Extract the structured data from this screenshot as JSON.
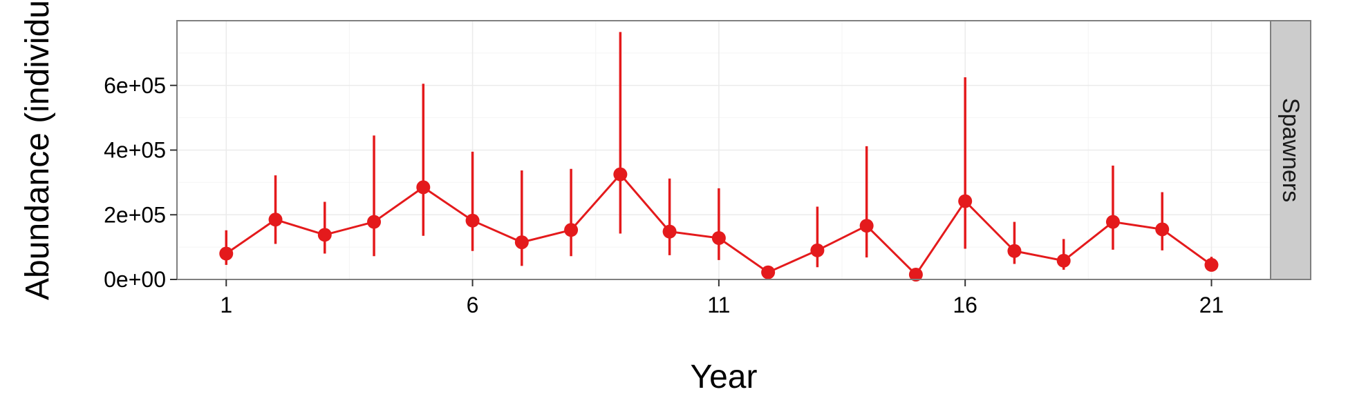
{
  "chart_data": {
    "type": "line",
    "title": "",
    "xlabel": "Year",
    "ylabel": "Abundance (individu",
    "facet_label": "Spawners",
    "xlim": [
      0,
      22.2
    ],
    "ylim": [
      0,
      800000
    ],
    "x_ticks": [
      1,
      6,
      11,
      16,
      21
    ],
    "y_ticks": [
      0,
      200000,
      400000,
      600000
    ],
    "y_tick_labels": [
      "0e+00",
      "2e+05",
      "4e+05",
      "6e+05"
    ],
    "grid": true,
    "legend": "none",
    "colors": {
      "series": "#e41a1c",
      "panel_border": "#7f7f7f",
      "grid": "#ebebeb",
      "strip_fill": "#cccccc"
    },
    "series": [
      {
        "x": [
          1,
          2,
          3,
          4,
          5,
          6,
          7,
          8,
          9,
          10,
          11,
          12,
          13,
          14,
          15,
          16,
          17,
          18,
          19,
          20,
          21
        ],
        "y": [
          80000,
          185000,
          138000,
          178000,
          285000,
          182000,
          115000,
          153000,
          325000,
          148000,
          128000,
          22000,
          90000,
          166000,
          15000,
          242000,
          88000,
          58000,
          178000,
          155000,
          45000
        ],
        "lower": [
          45000,
          110000,
          80000,
          72000,
          135000,
          88000,
          42000,
          72000,
          142000,
          75000,
          60000,
          8000,
          38000,
          68000,
          5000,
          95000,
          48000,
          30000,
          92000,
          90000,
          30000
        ],
        "upper": [
          152000,
          322000,
          240000,
          445000,
          605000,
          395000,
          337000,
          342000,
          765000,
          312000,
          282000,
          40000,
          225000,
          412000,
          28000,
          625000,
          178000,
          125000,
          352000,
          270000,
          70000
        ]
      }
    ]
  }
}
